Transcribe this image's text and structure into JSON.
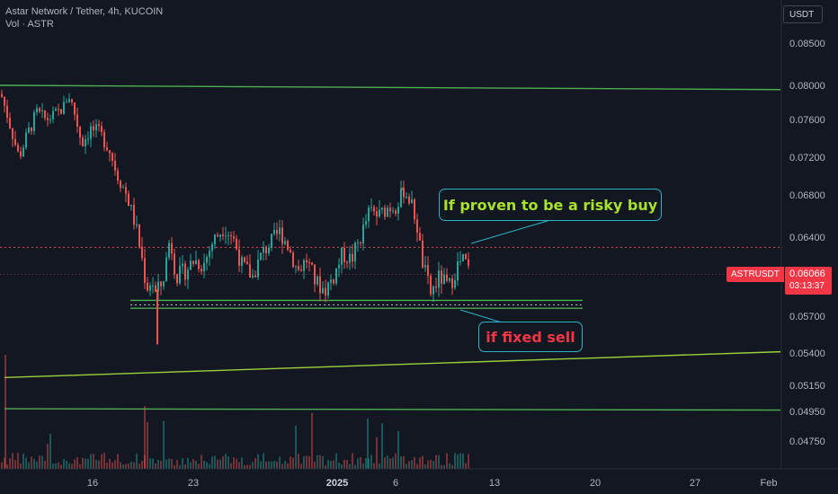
{
  "header": {
    "title": "Astar Network / Tether, 4h, KUCOIN",
    "volume_label": "Vol · ASTR"
  },
  "currency_button": "USDT",
  "price_scale": {
    "labels": [
      "0.08500",
      "0.08000",
      "0.07600",
      "0.07200",
      "0.06800",
      "0.06400",
      "0.05700",
      "0.05400",
      "0.05150",
      "0.04950",
      "0.04750"
    ]
  },
  "time_axis": {
    "labels": [
      "16",
      "23",
      "2025",
      "6",
      "13",
      "20",
      "27",
      "Feb"
    ]
  },
  "last_price": {
    "symbol": "ASTRUSDT",
    "price": "0.06066",
    "countdown": "03:13:37"
  },
  "annotations": {
    "buy": "If proven to be a risky buy",
    "sell": "if fixed sell"
  },
  "colors": {
    "background": "#131722",
    "up": "#26a69a",
    "down": "#ef5350",
    "level_line": "#4caf50",
    "trendline": "#9bd13a",
    "annotation_border": "#2ab4c6",
    "buy_text": "#a7e22e",
    "sell_text": "#f23645"
  },
  "chart_data": {
    "type": "candlestick",
    "symbol": "ASTRUSDT",
    "exchange": "KUCOIN",
    "interval": "4h",
    "y_scale": "nonlinear",
    "ylim": [
      0.0465,
      0.0872
    ],
    "x_ticks": [
      "16",
      "23",
      "2025",
      "6",
      "13",
      "20",
      "27",
      "Feb"
    ],
    "y_ticks": [
      0.085,
      0.08,
      0.076,
      0.072,
      0.068,
      0.064,
      0.057,
      0.054,
      0.0515,
      0.0495,
      0.0475
    ],
    "last": 0.06066,
    "close_path": [
      [
        0,
        0.079
      ],
      [
        10,
        0.0755
      ],
      [
        20,
        0.072
      ],
      [
        30,
        0.0745
      ],
      [
        40,
        0.0768
      ],
      [
        50,
        0.076
      ],
      [
        60,
        0.0765
      ],
      [
        70,
        0.0775
      ],
      [
        75,
        0.079
      ],
      [
        80,
        0.0775
      ],
      [
        90,
        0.0735
      ],
      [
        100,
        0.075
      ],
      [
        110,
        0.0745
      ],
      [
        120,
        0.073
      ],
      [
        130,
        0.07
      ],
      [
        140,
        0.068
      ],
      [
        150,
        0.065
      ],
      [
        157,
        0.062
      ],
      [
        162,
        0.0595
      ],
      [
        168,
        0.0602
      ],
      [
        172,
        0.059
      ],
      [
        180,
        0.06
      ],
      [
        188,
        0.064
      ],
      [
        195,
        0.0605
      ],
      [
        205,
        0.061
      ],
      [
        215,
        0.062
      ],
      [
        225,
        0.0615
      ],
      [
        235,
        0.0635
      ],
      [
        248,
        0.065
      ],
      [
        258,
        0.064
      ],
      [
        268,
        0.0615
      ],
      [
        280,
        0.0605
      ],
      [
        290,
        0.0625
      ],
      [
        300,
        0.0635
      ],
      [
        310,
        0.0645
      ],
      [
        318,
        0.0635
      ],
      [
        330,
        0.061
      ],
      [
        340,
        0.062
      ],
      [
        350,
        0.06
      ],
      [
        360,
        0.0593
      ],
      [
        370,
        0.0605
      ],
      [
        380,
        0.0625
      ],
      [
        390,
        0.062
      ],
      [
        400,
        0.064
      ],
      [
        410,
        0.0665
      ],
      [
        420,
        0.066
      ],
      [
        430,
        0.0668
      ],
      [
        440,
        0.067
      ],
      [
        448,
        0.0685
      ],
      [
        455,
        0.0675
      ],
      [
        462,
        0.0655
      ],
      [
        468,
        0.062
      ],
      [
        478,
        0.059
      ],
      [
        488,
        0.0605
      ],
      [
        498,
        0.0595
      ],
      [
        508,
        0.0615
      ],
      [
        515,
        0.062
      ],
      [
        522,
        0.0607
      ]
    ],
    "wicks": [
      {
        "x": 175,
        "low": 0.0547
      },
      {
        "x": 448,
        "high": 0.0688
      }
    ],
    "lines": [
      {
        "name": "upper-channel",
        "from": [
          0,
          0.08
        ],
        "to": [
          868,
          0.0795
        ],
        "color": "#4caf50"
      },
      {
        "name": "support-upper",
        "from": [
          145,
          0.0584
        ],
        "to": [
          648,
          0.0584
        ],
        "color": "#4caf50"
      },
      {
        "name": "support-lower",
        "from": [
          145,
          0.0577
        ],
        "to": [
          648,
          0.0577
        ],
        "color": "#4caf50"
      },
      {
        "name": "rising-trendline",
        "from": [
          5,
          0.0521
        ],
        "to": [
          868,
          0.0541
        ],
        "color": "#9bd13a"
      },
      {
        "name": "lower-horizontal",
        "from": [
          5,
          0.0497
        ],
        "to": [
          868,
          0.0496
        ],
        "color": "#4caf50"
      }
    ],
    "dotted_levels": [
      0.0631,
      0.0607,
      0.058
    ]
  }
}
